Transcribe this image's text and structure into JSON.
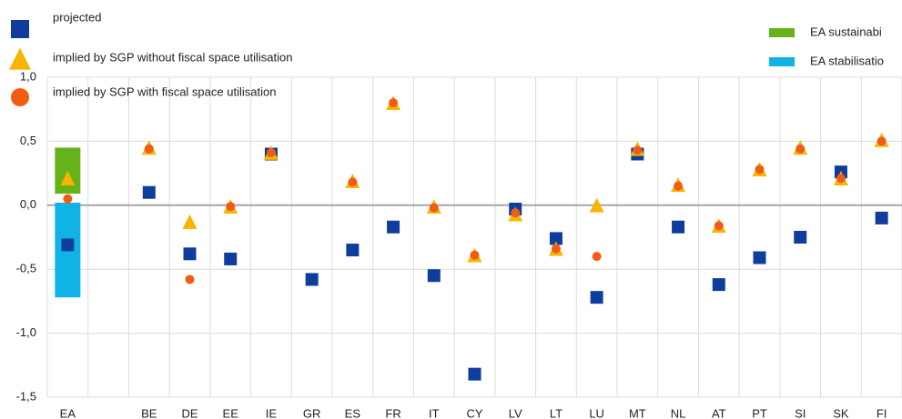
{
  "chart_data": {
    "type": "scatter",
    "categories": [
      "EA",
      null,
      "BE",
      "DE",
      "EE",
      "IE",
      "GR",
      "ES",
      "FR",
      "IT",
      "CY",
      "LV",
      "LT",
      "LU",
      "MT",
      "NL",
      "AT",
      "PT",
      "SI",
      "SK",
      "FI"
    ],
    "ranges": [
      {
        "name": "EA sustainabi",
        "color": "#66b21a",
        "category": 0,
        "low": 0.09,
        "high": 0.45
      },
      {
        "name": "EA stabilisatio",
        "color": "#10b3e6",
        "category": 0,
        "low": -0.72,
        "high": 0.02
      }
    ],
    "series": [
      {
        "name": "projected",
        "color": "#0f3d9c",
        "marker": "square",
        "values": [
          -0.31,
          null,
          0.1,
          -0.38,
          -0.42,
          0.4,
          -0.58,
          -0.35,
          -0.17,
          -0.55,
          -1.32,
          -0.03,
          -0.26,
          -0.72,
          0.4,
          -0.17,
          -0.62,
          -0.41,
          -0.25,
          0.26,
          -0.1
        ]
      },
      {
        "name": "implied by SGP without fiscal space utilisation",
        "color": "#f7b500",
        "marker": "triangle",
        "values": [
          0.2,
          null,
          0.44,
          -0.14,
          -0.02,
          0.4,
          null,
          0.18,
          0.79,
          -0.02,
          -0.4,
          -0.08,
          -0.35,
          -0.01,
          0.43,
          0.15,
          -0.17,
          0.27,
          0.44,
          0.2,
          0.5
        ]
      },
      {
        "name": "implied by SGP with fiscal space utilisation",
        "color": "#f25c12",
        "marker": "circle",
        "values": [
          0.05,
          null,
          0.44,
          -0.58,
          -0.01,
          0.41,
          null,
          0.18,
          0.8,
          -0.02,
          -0.39,
          -0.06,
          -0.34,
          -0.4,
          0.43,
          0.15,
          -0.16,
          0.28,
          0.44,
          0.21,
          0.5
        ]
      }
    ],
    "ylim": [
      -1.5,
      1.0
    ],
    "yticks": [
      {
        "value": 1.0,
        "label": "1,0"
      },
      {
        "value": 0.5,
        "label": "0,5"
      },
      {
        "value": 0,
        "label": "0,0"
      },
      {
        "value": -0.5,
        "label": "-0,5"
      },
      {
        "value": -1.0,
        "label": "-1,0"
      },
      {
        "value": -1.5,
        "label": "-1,5"
      }
    ],
    "grid": true
  }
}
